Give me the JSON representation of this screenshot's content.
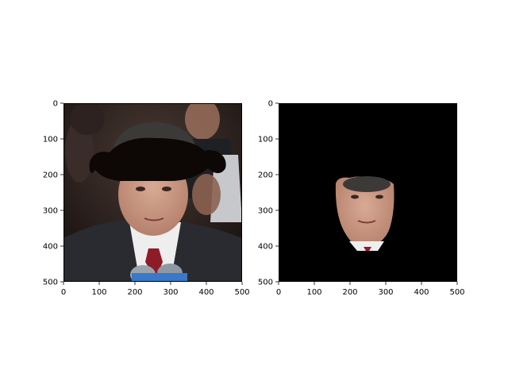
{
  "chart_data": [
    {
      "type": "image",
      "panel": "left",
      "content": "photo of a man in a dark suit with white shirt and red tie, face region visible, a large black mustache-shaped overlay above the head, microphones at the bottom, dark background with other people",
      "x_ticks": [
        "0",
        "100",
        "200",
        "300",
        "400",
        "500"
      ],
      "y_ticks": [
        "0",
        "100",
        "200",
        "300",
        "400",
        "500"
      ],
      "xlim": [
        0,
        500
      ],
      "ylim": [
        500,
        0
      ],
      "grid": false,
      "title": "",
      "xlabel": "",
      "ylabel": ""
    },
    {
      "type": "image",
      "panel": "right",
      "content": "segmented face of the same man on a black background (face mask cutout)",
      "x_ticks": [
        "0",
        "100",
        "200",
        "300",
        "400",
        "500"
      ],
      "y_ticks": [
        "0",
        "100",
        "200",
        "300",
        "400",
        "500"
      ],
      "xlim": [
        0,
        500
      ],
      "ylim": [
        500,
        0
      ],
      "grid": false,
      "title": "",
      "xlabel": "",
      "ylabel": ""
    }
  ],
  "colors": {
    "mask_background": "#000000",
    "mustache": "#0d0806",
    "skin": "#c99a84",
    "suit": "#2a2b30",
    "shirt": "#eeeeee",
    "tie": "#8e1c28",
    "hair": "#3c3a38",
    "photo_background": "#2a1e1a",
    "mic_blue": "#3a78c8"
  }
}
